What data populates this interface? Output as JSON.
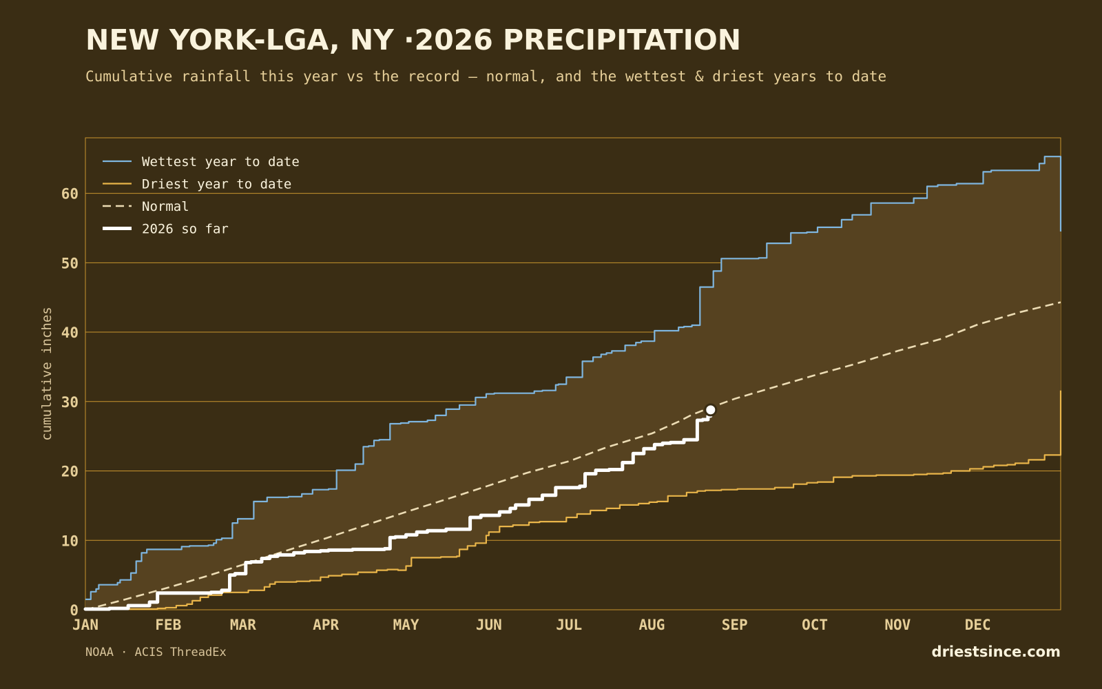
{
  "title": "NEW YORK-LGA, NY ·2026 PRECIPITATION",
  "subtitle": "Cumulative rainfall this year vs the record — normal, and the wettest & driest years to date",
  "source": "NOAA · ACIS ThreadEx",
  "brand": "driestsince.com",
  "colors": {
    "background": "#3a2d14",
    "wettest": "#7fb6df",
    "driest": "#e9b54a",
    "normal": "#ecdcb4",
    "current": "#ffffff",
    "band_fill": "#564220",
    "grid": "#c9952e"
  },
  "chart_data": {
    "type": "line",
    "ylabel": "cumulative inches",
    "ylim": [
      0,
      68
    ],
    "xlim": [
      0,
      365
    ],
    "yticks": [
      0,
      10,
      20,
      30,
      40,
      50,
      60
    ],
    "month_ticks": [
      {
        "label": "JAN",
        "day": 0
      },
      {
        "label": "FEB",
        "day": 31
      },
      {
        "label": "MAR",
        "day": 59
      },
      {
        "label": "APR",
        "day": 90
      },
      {
        "label": "MAY",
        "day": 120
      },
      {
        "label": "JUN",
        "day": 151
      },
      {
        "label": "JUL",
        "day": 181
      },
      {
        "label": "AUG",
        "day": 212
      },
      {
        "label": "SEP",
        "day": 243
      },
      {
        "label": "OCT",
        "day": 273
      },
      {
        "label": "NOV",
        "day": 304
      },
      {
        "label": "DEC",
        "day": 334
      }
    ],
    "grid": true,
    "legend_position": "top-left",
    "series": [
      {
        "name": "Wettest year to date",
        "key": "wettest",
        "x": [
          0,
          2,
          4,
          5,
          7,
          10,
          12,
          13,
          17,
          19,
          21,
          23,
          26,
          28,
          31,
          36,
          39,
          41,
          46,
          48,
          49,
          51,
          55,
          57,
          60,
          63,
          68,
          76,
          81,
          85,
          91,
          94,
          101,
          104,
          106,
          108,
          110,
          114,
          118,
          121,
          128,
          131,
          135,
          140,
          146,
          150,
          153,
          158,
          168,
          171,
          176,
          177,
          180,
          186,
          190,
          193,
          195,
          197,
          202,
          206,
          208,
          213,
          222,
          224,
          227,
          230,
          233,
          235,
          238,
          244,
          250,
          252,
          255,
          264,
          270,
          274,
          283,
          287,
          294,
          300,
          302,
          310,
          315,
          319,
          326,
          336,
          339,
          344,
          351,
          357,
          359,
          363,
          365
        ],
        "y": [
          1.5,
          2.6,
          3.0,
          3.6,
          3.6,
          3.6,
          3.9,
          4.3,
          5.3,
          7.0,
          8.2,
          8.7,
          8.7,
          8.7,
          8.7,
          9.1,
          9.2,
          9.2,
          9.3,
          9.6,
          10.1,
          10.3,
          12.5,
          13.1,
          13.1,
          15.6,
          16.2,
          16.3,
          16.7,
          17.3,
          17.4,
          20.1,
          21.0,
          23.5,
          23.6,
          24.4,
          24.5,
          26.8,
          26.9,
          27.1,
          27.3,
          28.0,
          28.9,
          29.5,
          30.6,
          31.1,
          31.2,
          31.2,
          31.5,
          31.6,
          32.4,
          32.5,
          33.5,
          35.8,
          36.4,
          36.8,
          37.0,
          37.3,
          38.1,
          38.5,
          38.7,
          40.2,
          40.7,
          40.8,
          41.0,
          46.5,
          46.5,
          48.8,
          50.6,
          50.6,
          50.6,
          50.7,
          52.8,
          54.3,
          54.4,
          55.1,
          56.2,
          56.9,
          58.6,
          58.6,
          58.6,
          59.3,
          61.0,
          61.2,
          61.4,
          63.1,
          63.3,
          63.3,
          63.3,
          64.3,
          65.3,
          65.3,
          54.5
        ]
      },
      {
        "name": "Driest year to date",
        "key": "driest",
        "x": [
          0,
          5,
          9,
          14,
          19,
          24,
          27,
          30,
          32,
          34,
          38,
          40,
          43,
          46,
          51,
          55,
          58,
          61,
          67,
          69,
          71,
          75,
          79,
          84,
          88,
          91,
          96,
          102,
          109,
          113,
          117,
          120,
          122,
          133,
          139,
          140,
          143,
          146,
          150,
          151,
          155,
          160,
          166,
          170,
          180,
          184,
          189,
          193,
          195,
          200,
          207,
          211,
          214,
          218,
          225,
          229,
          232,
          238,
          244,
          250,
          258,
          265,
          270,
          274,
          280,
          287,
          296,
          304,
          310,
          315,
          317,
          321,
          324,
          327,
          331,
          336,
          340,
          345,
          348,
          353,
          356,
          359,
          363,
          365
        ],
        "y": [
          0,
          0.1,
          0.1,
          0.1,
          0.1,
          0.1,
          0.2,
          0.3,
          0.3,
          0.6,
          0.8,
          1.3,
          1.8,
          2.1,
          2.5,
          2.5,
          2.5,
          2.8,
          3.3,
          3.7,
          4.0,
          4.0,
          4.1,
          4.2,
          4.7,
          4.9,
          5.1,
          5.4,
          5.7,
          5.8,
          5.7,
          6.3,
          7.5,
          7.6,
          7.7,
          8.7,
          9.2,
          9.6,
          10.7,
          11.2,
          12.0,
          12.2,
          12.6,
          12.7,
          13.3,
          13.8,
          14.3,
          14.3,
          14.6,
          15.1,
          15.3,
          15.5,
          15.6,
          16.4,
          16.9,
          17.1,
          17.2,
          17.3,
          17.4,
          17.4,
          17.6,
          18.1,
          18.3,
          18.4,
          19.1,
          19.3,
          19.4,
          19.4,
          19.5,
          19.6,
          19.6,
          19.7,
          20.0,
          20.0,
          20.3,
          20.6,
          20.8,
          20.9,
          21.1,
          21.6,
          21.6,
          22.3,
          22.3,
          31.6
        ]
      },
      {
        "name": "Normal",
        "key": "normal",
        "x": [
          0,
          15,
          31,
          45,
          59,
          75,
          90,
          105,
          120,
          135,
          151,
          165,
          181,
          195,
          212,
          222,
          227,
          233,
          243,
          258,
          273,
          288,
          304,
          320,
          334,
          350,
          365
        ],
        "y": [
          0,
          1.5,
          3.2,
          4.8,
          6.5,
          8.5,
          10.3,
          12.2,
          14.1,
          15.9,
          17.9,
          19.7,
          21.4,
          23.4,
          25.4,
          27.1,
          28.1,
          29.0,
          30.4,
          32.1,
          33.8,
          35.4,
          37.3,
          39.0,
          41.1,
          42.9,
          44.3
        ]
      },
      {
        "name": "2026 so far",
        "key": "current",
        "x": [
          0,
          9,
          16,
          24,
          27,
          40,
          47,
          51,
          54,
          56,
          60,
          62,
          66,
          69,
          72,
          78,
          82,
          88,
          91,
          94,
          100,
          105,
          112,
          114,
          116,
          120,
          124,
          128,
          135,
          144,
          148,
          155,
          159,
          161,
          166,
          171,
          176,
          181,
          185,
          187,
          191,
          196,
          201,
          205,
          209,
          213,
          216,
          219,
          224,
          229,
          231,
          233,
          234
        ],
        "y": [
          0.1,
          0.2,
          0.6,
          1.1,
          2.4,
          2.4,
          2.5,
          2.8,
          5.0,
          5.2,
          6.8,
          6.9,
          7.4,
          7.7,
          7.9,
          8.2,
          8.4,
          8.5,
          8.6,
          8.6,
          8.7,
          8.7,
          8.8,
          10.4,
          10.5,
          10.8,
          11.2,
          11.4,
          11.6,
          13.3,
          13.6,
          14.1,
          14.6,
          15.1,
          15.9,
          16.5,
          17.6,
          17.6,
          17.8,
          19.6,
          20.1,
          20.2,
          21.2,
          22.5,
          23.2,
          23.8,
          24.0,
          24.1,
          24.5,
          27.3,
          27.4,
          27.9,
          28.8
        ]
      }
    ],
    "current_marker": {
      "x": 234,
      "y": 28.8
    }
  }
}
